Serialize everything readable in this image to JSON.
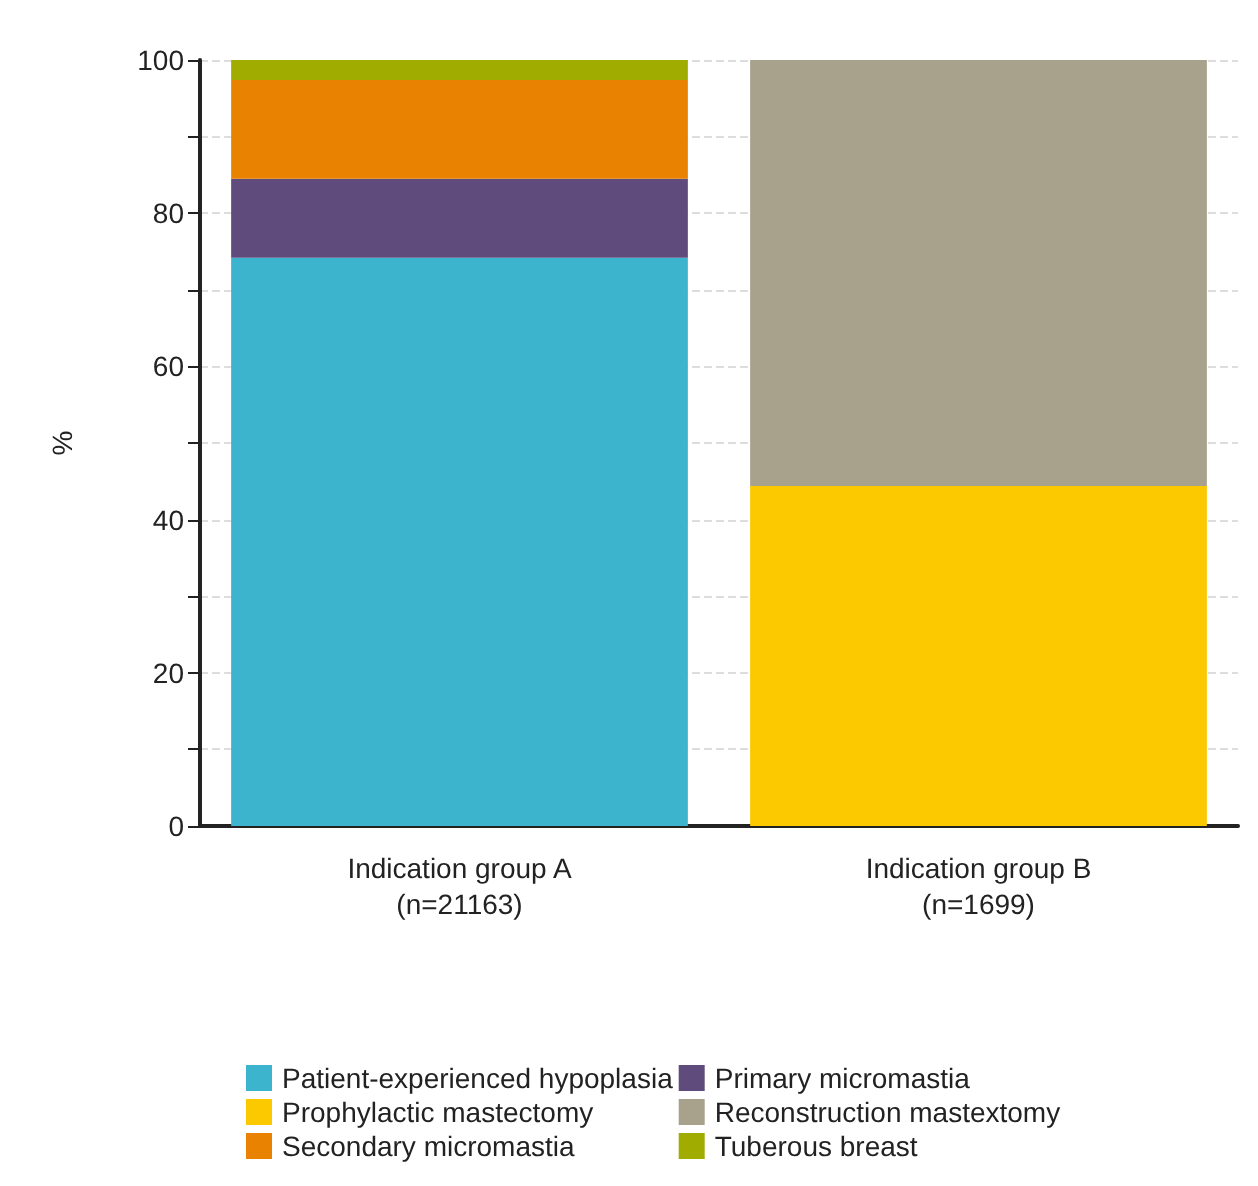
{
  "chart_data": {
    "type": "bar",
    "stacked": true,
    "ylabel": "%",
    "categories": [
      "Indication group A\n(n=21163)",
      "Indication group B\n(n=1699)"
    ],
    "series": [
      {
        "name": "Patient-experienced hypoplasia",
        "color": "#3cb4ce",
        "values": [
          74.2,
          null
        ]
      },
      {
        "name": "Primary micromastia",
        "color": "#604c7c",
        "values": [
          10.3,
          null
        ]
      },
      {
        "name": "Prophylactic mastectomy",
        "color": "#fcc800",
        "values": [
          null,
          44.4
        ]
      },
      {
        "name": "Reconstruction mastextomy",
        "color": "#a8a18c",
        "values": [
          null,
          55.6
        ]
      },
      {
        "name": "Secondary micromastia",
        "color": "#e88200",
        "values": [
          12.9,
          null
        ]
      },
      {
        "name": "Tuberous breast",
        "color": "#a0ac00",
        "values": [
          2.6,
          null
        ]
      }
    ],
    "ylim": [
      0,
      100
    ],
    "yticks": [
      0,
      {
        "value": 10,
        "label": null
      },
      20,
      {
        "value": 30,
        "label": null
      },
      40,
      {
        "value": 50,
        "label": null
      },
      60,
      {
        "value": 70,
        "label": null
      },
      80,
      {
        "value": 90,
        "label": null
      },
      100
    ],
    "grid": "y",
    "legend": "bottom"
  }
}
